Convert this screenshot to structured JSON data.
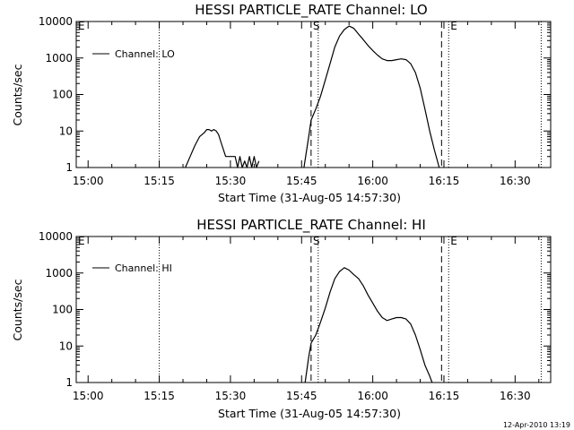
{
  "page": {
    "timestamp": "12-Apr-2010 13:19"
  },
  "colors": {
    "background": "#ffffff",
    "foreground": "#000000"
  },
  "chart_data": [
    {
      "type": "line",
      "title": "HESSI PARTICLE_RATE Channel: LO",
      "xlabel": "Start Time (31-Aug-05 14:57:30)",
      "ylabel": "Counts/sec",
      "y_scale": "log",
      "ylim": [
        1,
        10000
      ],
      "xlim": [
        "14:57:30",
        "16:37:30"
      ],
      "x_ticks": [
        "15:00",
        "15:15",
        "15:30",
        "15:45",
        "16:00",
        "16:15",
        "16:30"
      ],
      "y_ticks": [
        "1",
        "10",
        "100",
        "1000",
        "10000"
      ],
      "legend": {
        "placement": "top-left",
        "entries": [
          "Channel: LO"
        ]
      },
      "markers": [
        {
          "label": "E",
          "time": "14:57:30",
          "style": "dotted"
        },
        {
          "label": "",
          "time": "15:15:00",
          "style": "dotted"
        },
        {
          "label": "S",
          "time": "15:47:00",
          "style": "dashed"
        },
        {
          "label": "",
          "time": "15:48:30",
          "style": "dotted"
        },
        {
          "label": "",
          "time": "16:14:30",
          "style": "dashed"
        },
        {
          "label": "E",
          "time": "16:16:00",
          "style": "dotted"
        },
        {
          "label": "",
          "time": "16:35:30",
          "style": "dotted"
        }
      ],
      "series": [
        {
          "name": "Channel: LO",
          "x": [
            "15:20:30",
            "15:21:30",
            "15:22:30",
            "15:23:30",
            "15:24:30",
            "15:25:00",
            "15:25:30",
            "15:26:00",
            "15:26:30",
            "15:27:00",
            "15:27:30",
            "15:28:00",
            "15:29:00",
            "15:29:30",
            "15:30:00",
            "15:30:30",
            "15:31:00",
            "15:31:30",
            "15:32:00",
            "15:32:30",
            "15:33:00",
            "15:33:30",
            "15:34:00",
            "15:34:30",
            "15:35:00",
            "15:35:30",
            "15:36:00"
          ],
          "y": [
            1,
            2,
            4,
            7,
            9,
            11,
            11,
            10,
            11,
            10,
            8,
            5,
            2,
            2,
            2,
            2,
            2,
            1,
            2,
            1,
            1.5,
            1,
            2,
            1,
            2,
            1,
            1.5
          ]
        },
        {
          "name": "Channel: LO",
          "x": [
            "15:45:30",
            "15:46:30",
            "15:47:00",
            "15:48:00",
            "15:49:00",
            "15:50:00",
            "15:51:00",
            "15:52:00",
            "15:53:00",
            "15:54:00",
            "15:55:00",
            "15:56:00",
            "15:57:00",
            "15:58:00",
            "15:59:00",
            "16:00:00",
            "16:01:00",
            "16:02:00",
            "16:03:00",
            "16:04:00",
            "16:05:00",
            "16:06:00",
            "16:07:00",
            "16:08:00",
            "16:09:00",
            "16:10:00",
            "16:11:00",
            "16:12:00",
            "16:13:00",
            "16:14:00"
          ],
          "y": [
            1,
            7,
            20,
            40,
            90,
            250,
            700,
            2000,
            4000,
            6000,
            7500,
            6500,
            4500,
            3200,
            2200,
            1600,
            1200,
            950,
            850,
            850,
            900,
            950,
            900,
            700,
            400,
            150,
            40,
            10,
            3,
            1
          ]
        }
      ]
    },
    {
      "type": "line",
      "title": "HESSI PARTICLE_RATE Channel: HI",
      "xlabel": "Start Time (31-Aug-05 14:57:30)",
      "ylabel": "Counts/sec",
      "y_scale": "log",
      "ylim": [
        1,
        10000
      ],
      "xlim": [
        "14:57:30",
        "16:37:30"
      ],
      "x_ticks": [
        "15:00",
        "15:15",
        "15:30",
        "15:45",
        "16:00",
        "16:15",
        "16:30"
      ],
      "y_ticks": [
        "1",
        "10",
        "100",
        "1000",
        "10000"
      ],
      "legend": {
        "placement": "top-left",
        "entries": [
          "Channel: HI"
        ]
      },
      "markers": [
        {
          "label": "E",
          "time": "14:57:30",
          "style": "dotted"
        },
        {
          "label": "",
          "time": "15:15:00",
          "style": "dotted"
        },
        {
          "label": "S",
          "time": "15:47:00",
          "style": "dashed"
        },
        {
          "label": "",
          "time": "15:48:30",
          "style": "dotted"
        },
        {
          "label": "",
          "time": "16:14:30",
          "style": "dashed"
        },
        {
          "label": "E",
          "time": "16:16:00",
          "style": "dotted"
        },
        {
          "label": "",
          "time": "16:35:30",
          "style": "dotted"
        }
      ],
      "series": [
        {
          "name": "Channel: HI",
          "x": [
            "15:45:45",
            "15:46:30",
            "15:47:00",
            "15:48:00",
            "15:49:00",
            "15:50:00",
            "15:51:00",
            "15:52:00",
            "15:53:00",
            "15:54:00",
            "15:55:00",
            "15:56:00",
            "15:57:00",
            "15:58:00",
            "15:59:00",
            "16:00:00",
            "16:01:00",
            "16:02:00",
            "16:03:00",
            "16:04:00",
            "16:05:00",
            "16:06:00",
            "16:07:00",
            "16:08:00",
            "16:09:00",
            "16:10:00",
            "16:11:00",
            "16:12:00",
            "16:12:30"
          ],
          "y": [
            1,
            5,
            12,
            20,
            45,
            110,
            300,
            700,
            1100,
            1400,
            1200,
            900,
            700,
            450,
            250,
            150,
            90,
            60,
            50,
            55,
            60,
            60,
            55,
            40,
            20,
            8,
            3,
            1.5,
            1
          ]
        }
      ]
    }
  ]
}
